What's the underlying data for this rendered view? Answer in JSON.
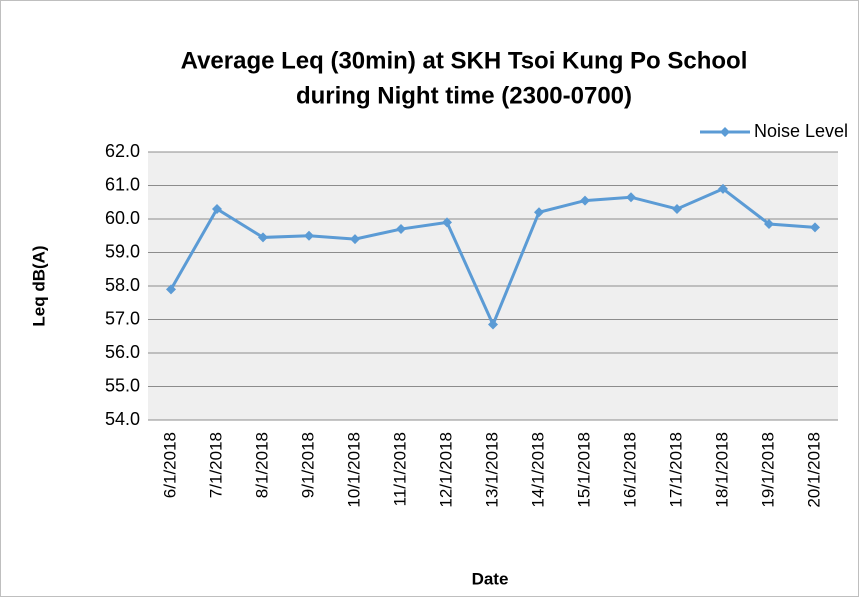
{
  "chart_data": {
    "type": "line",
    "title": [
      "Average Leq (30min) at SKH Tsoi Kung Po School",
      "during Night time (2300-0700)"
    ],
    "x_label": "Date",
    "y_label": "Leq dB(A)",
    "categories": [
      "6/1/2018",
      "7/1/2018",
      "8/1/2018",
      "9/1/2018",
      "10/1/2018",
      "11/1/2018",
      "12/1/2018",
      "13/1/2018",
      "14/1/2018",
      "15/1/2018",
      "16/1/2018",
      "17/1/2018",
      "18/1/2018",
      "19/1/2018",
      "20/1/2018"
    ],
    "series": [
      {
        "name": "Noise Level",
        "color": "#5b9bd5",
        "values": [
          57.9,
          60.3,
          59.45,
          59.5,
          59.4,
          59.7,
          59.9,
          56.85,
          60.2,
          60.55,
          60.65,
          60.3,
          60.9,
          59.85,
          59.75
        ]
      }
    ],
    "ylim": [
      54,
      62
    ],
    "yticks": [
      {
        "value": 54,
        "label": "54.0"
      },
      {
        "value": 55,
        "label": "55.0"
      },
      {
        "value": 56,
        "label": "56.0"
      },
      {
        "value": 57,
        "label": "57.0"
      },
      {
        "value": 58,
        "label": "58.0"
      },
      {
        "value": 59,
        "label": "59.0"
      },
      {
        "value": 60,
        "label": "60.0"
      },
      {
        "value": 61,
        "label": "61.0"
      },
      {
        "value": 62,
        "label": "62.0"
      }
    ],
    "grid": true,
    "legend": "top-right"
  }
}
